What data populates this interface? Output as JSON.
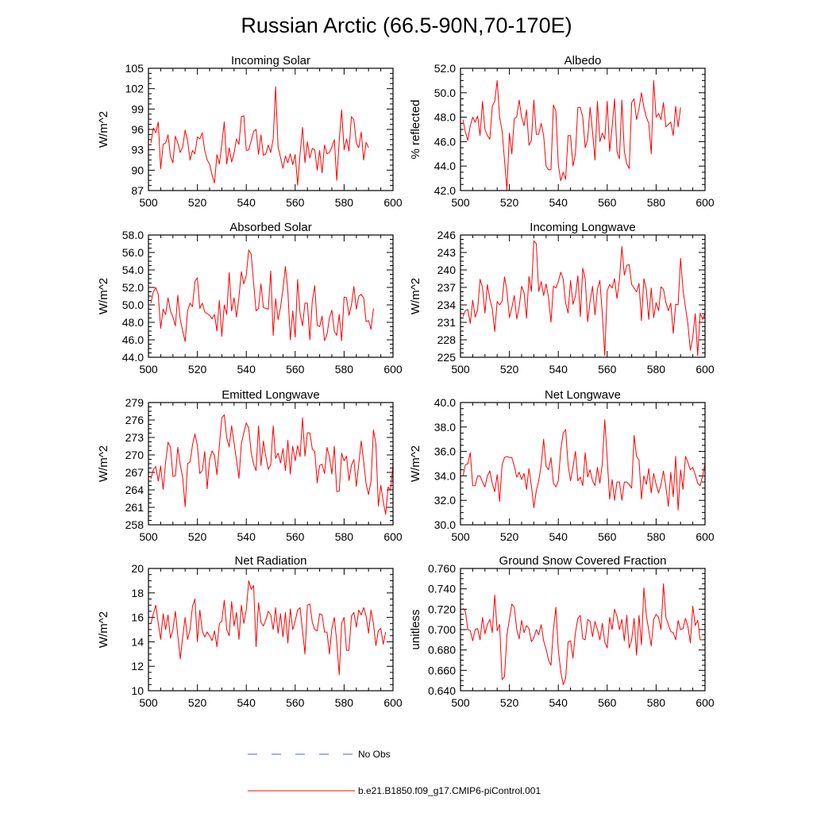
{
  "title": "Russian Arctic (66.5-90N,70-170E)",
  "legend": [
    {
      "label": "No Obs",
      "color": "#4a5fd6",
      "style": "dashed"
    },
    {
      "label": "b.e21.B1850.f09_g17.CMIP6-piControl.001",
      "color": "#ff0000",
      "style": "solid"
    }
  ],
  "chart_data": [
    {
      "type": "line",
      "title": "Incoming Solar",
      "ylabel": "W/m^2",
      "xlim": [
        500,
        600
      ],
      "ylim": [
        87,
        105
      ],
      "xticks": [
        "500",
        "520",
        "540",
        "560",
        "580",
        "600"
      ],
      "yticks": [
        "87",
        "90",
        "93",
        "96",
        "99",
        "102",
        "105"
      ],
      "series": [
        {
          "name": "b.e21.B1850.f09_g17.CMIP6-piControl.001",
          "x_start": 501,
          "values": [
            94.0,
            96.2,
            95.5,
            97.1,
            90.2,
            93.8,
            94.0,
            95.2,
            92.0,
            91.1,
            95.0,
            94.0,
            92.6,
            93.4,
            95.9,
            94.3,
            91.5,
            92.9,
            92.4,
            94.9,
            94.6,
            95.5,
            92.9,
            91.5,
            90.9,
            89.3,
            88.1,
            92.3,
            90.9,
            93.9,
            97.1,
            90.9,
            93.3,
            91.2,
            92.5,
            94.6,
            93.8,
            97.9,
            98.0,
            92.9,
            93.0,
            94.3,
            95.7,
            96.0,
            92.3,
            95.2,
            92.2,
            92.4,
            93.7,
            92.6,
            94.6,
            102.3,
            93.4,
            91.9,
            90.3,
            92.1,
            91.1,
            92.4,
            90.8,
            92.3,
            87.8,
            92.4,
            96.3,
            91.1,
            94.2,
            91.8,
            93.2,
            93.0,
            90.0,
            92.9,
            89.6,
            93.7,
            92.4,
            92.6,
            93.4,
            94.5,
            88.5,
            94.3,
            98.9,
            93.0,
            94.6,
            92.8,
            97.9,
            97.4,
            94.0,
            93.3,
            95.6,
            91.5,
            94.1,
            93.3
          ]
        }
      ]
    },
    {
      "type": "line",
      "title": "Albedo",
      "ylabel": "% reflected",
      "xlim": [
        500,
        600
      ],
      "ylim": [
        42.0,
        52.0
      ],
      "xticks": [
        "500",
        "520",
        "540",
        "560",
        "580",
        "600"
      ],
      "yticks": [
        "42.0",
        "44.0",
        "46.0",
        "48.0",
        "50.0",
        "52.0"
      ],
      "series": [
        {
          "name": "b.e21.B1850.f09_g17.CMIP6-piControl.001",
          "x_start": 501,
          "values": [
            47.8,
            46.8,
            46.1,
            47.3,
            48.0,
            47.6,
            48.1,
            46.5,
            49.3,
            47.0,
            46.5,
            46.2,
            48.9,
            49.3,
            51.0,
            48.0,
            46.9,
            44.5,
            42.0,
            46.7,
            45.0,
            47.9,
            48.0,
            49.4,
            48.0,
            47.3,
            48.6,
            45.7,
            46.1,
            49.4,
            46.6,
            46.6,
            47.5,
            46.5,
            44.0,
            43.7,
            43.7,
            49.0,
            48.5,
            44.1,
            42.8,
            43.5,
            42.9,
            46.5,
            46.5,
            44.0,
            45.0,
            48.8,
            48.8,
            48.0,
            45.5,
            46.2,
            48.8,
            46.8,
            44.5,
            49.3,
            46.0,
            46.7,
            46.2,
            49.3,
            45.2,
            47.2,
            49.5,
            45.2,
            44.6,
            49.4,
            45.2,
            44.2,
            43.8,
            49.2,
            49.5,
            47.8,
            48.7,
            50.0,
            48.8,
            48.0,
            47.5,
            45.0,
            51.0,
            48.0,
            48.3,
            47.8,
            49.2,
            47.2,
            47.4,
            47.6,
            46.5,
            48.9,
            47.2,
            48.8
          ]
        }
      ]
    },
    {
      "type": "line",
      "title": "Absorbed Solar",
      "ylabel": "W/m^2",
      "xlim": [
        500,
        600
      ],
      "ylim": [
        44.0,
        58.0
      ],
      "xticks": [
        "500",
        "520",
        "540",
        "560",
        "580",
        "600"
      ],
      "yticks": [
        "44.0",
        "46.0",
        "48.0",
        "50.0",
        "52.0",
        "54.0",
        "56.0",
        "58.0"
      ],
      "series": [
        {
          "name": "b.e21.B1850.f09_g17.CMIP6-piControl.001",
          "x_start": 501,
          "values": [
            50.2,
            51.5,
            52.0,
            51.2,
            47.3,
            49.5,
            48.9,
            50.8,
            49.3,
            48.6,
            47.6,
            51.1,
            48.3,
            47.0,
            45.8,
            49.3,
            50.2,
            49.8,
            52.7,
            53.1,
            49.6,
            50.2,
            49.2,
            49.0,
            48.8,
            48.4,
            48.9,
            47.0,
            50.5,
            46.4,
            50.0,
            48.9,
            53.7,
            49.3,
            50.8,
            48.6,
            50.9,
            53.8,
            52.4,
            53.4,
            56.3,
            55.8,
            52.5,
            49.3,
            49.6,
            52.4,
            49.7,
            49.6,
            49.5,
            53.9,
            46.5,
            50.7,
            48.3,
            49.7,
            51.8,
            54.4,
            51.6,
            46.0,
            49.3,
            46.3,
            52.9,
            49.0,
            47.6,
            50.2,
            50.2,
            46.0,
            50.5,
            52.2,
            47.7,
            47.5,
            48.7,
            45.9,
            46.6,
            48.5,
            49.4,
            47.0,
            46.5,
            48.9,
            45.9,
            50.9,
            50.8,
            48.8,
            50.0,
            52.1,
            49.5,
            51.0,
            51.2,
            50.8,
            48.1,
            48.2,
            47.2,
            49.6
          ]
        }
      ]
    },
    {
      "type": "line",
      "title": "Incoming Longwave",
      "ylabel": "W/m^2",
      "xlim": [
        500,
        600
      ],
      "ylim": [
        225,
        246
      ],
      "xticks": [
        "500",
        "520",
        "540",
        "560",
        "580",
        "600"
      ],
      "yticks": [
        "225",
        "228",
        "231",
        "234",
        "237",
        "240",
        "243",
        "246"
      ],
      "series": [
        {
          "name": "b.e21.B1850.f09_g17.CMIP6-piControl.001",
          "x_start": 501,
          "values": [
            232.0,
            233.0,
            233.2,
            230.8,
            234.8,
            231.9,
            233.1,
            238.4,
            237.0,
            232.6,
            237.5,
            235.0,
            233.3,
            229.4,
            234.6,
            234.0,
            234.6,
            238.8,
            236.4,
            231.8,
            233.5,
            235.6,
            231.6,
            233.6,
            237.2,
            236.1,
            231.7,
            238.9,
            236.3,
            245.0,
            244.5,
            236.3,
            238.0,
            235.6,
            237.6,
            235.3,
            231.0,
            237.2,
            236.9,
            238.0,
            239.6,
            238.4,
            234.3,
            232.6,
            238.2,
            234.1,
            235.5,
            239.0,
            232.0,
            240.3,
            238.5,
            231.1,
            234.6,
            237.2,
            232.3,
            236.7,
            238.2,
            232.4,
            225.3,
            236.4,
            237.5,
            236.9,
            238.5,
            235.1,
            238.3,
            244.0,
            239.1,
            240.8,
            240.9,
            237.5,
            236.9,
            236.2,
            237.7,
            231.3,
            238.5,
            236.6,
            231.5,
            236.9,
            231.8,
            234.4,
            233.0,
            237.1,
            236.7,
            234.4,
            233.0,
            234.3,
            229.1,
            234.1,
            234.0,
            242.0,
            236.6,
            233.6,
            230.7,
            226.2,
            228.4,
            232.5,
            225.3,
            232.6,
            231.5,
            232.6,
            234.7
          ]
        }
      ]
    },
    {
      "type": "line",
      "title": "Emitted Longwave",
      "ylabel": "W/m^2",
      "xlim": [
        500,
        600
      ],
      "ylim": [
        258,
        279
      ],
      "xticks": [
        "500",
        "520",
        "540",
        "560",
        "580",
        "600"
      ],
      "yticks": [
        "258",
        "261",
        "264",
        "267",
        "270",
        "273",
        "276",
        "279"
      ],
      "series": [
        {
          "name": "b.e21.B1850.f09_g17.CMIP6-piControl.001",
          "x_start": 501,
          "values": [
            265.9,
            267.5,
            268.0,
            265.5,
            268.1,
            264.1,
            268.7,
            272.2,
            271.3,
            266.3,
            266.4,
            271.3,
            268.3,
            266.1,
            261.1,
            268.5,
            268.8,
            271.7,
            273.6,
            271.6,
            266.8,
            267.3,
            270.6,
            264.2,
            269.2,
            270.7,
            269.9,
            266.6,
            271.7,
            276.4,
            276.9,
            272.9,
            271.4,
            275.0,
            272.1,
            269.1,
            266.0,
            272.0,
            273.8,
            275.5,
            274.6,
            270.4,
            268.4,
            267.3,
            275.0,
            268.2,
            272.4,
            269.7,
            267.5,
            268.4,
            275.0,
            269.4,
            270.3,
            268.6,
            271.1,
            267.3,
            272.5,
            266.7,
            271.5,
            269.0,
            271.6,
            269.7,
            276.4,
            269.8,
            273.8,
            273.8,
            271.0,
            270.6,
            265.2,
            268.2,
            268.4,
            266.8,
            271.3,
            269.7,
            266.7,
            271.5,
            263.7,
            263.8,
            270.3,
            269.0,
            269.8,
            265.6,
            268.2,
            269.2,
            264.6,
            268.5,
            272.4,
            268.9,
            265.0,
            263.2,
            265.5,
            274.3,
            271.9,
            261.2,
            264.8,
            262.0,
            259.8,
            264.5,
            263.9,
            268.5
          ]
        }
      ]
    },
    {
      "type": "line",
      "title": "Net Longwave",
      "ylabel": "W/m^2",
      "xlim": [
        500,
        600
      ],
      "ylim": [
        30.0,
        40.0
      ],
      "xticks": [
        "500",
        "520",
        "540",
        "560",
        "580",
        "600"
      ],
      "yticks": [
        "30.0",
        "32.0",
        "34.0",
        "36.0",
        "38.0",
        "40.0"
      ],
      "series": [
        {
          "name": "b.e21.B1850.f09_g17.CMIP6-piControl.001",
          "x_start": 501,
          "values": [
            34.0,
            34.9,
            35.0,
            35.9,
            33.2,
            33.2,
            34.0,
            34.0,
            33.5,
            33.1,
            34.0,
            34.4,
            33.4,
            32.7,
            34.1,
            31.9,
            34.9,
            35.5,
            35.6,
            35.5,
            35.5,
            34.8,
            33.9,
            34.3,
            33.7,
            34.2,
            32.9,
            34.6,
            33.2,
            31.4,
            32.8,
            33.6,
            34.9,
            37.0,
            34.8,
            34.5,
            35.5,
            33.4,
            33.1,
            33.6,
            36.1,
            37.5,
            37.8,
            34.9,
            33.6,
            34.7,
            36.0,
            33.6,
            33.9,
            33.2,
            35.9,
            33.9,
            34.5,
            33.6,
            33.2,
            34.7,
            33.4,
            35.0,
            38.6,
            35.4,
            32.1,
            33.7,
            32.0,
            33.5,
            33.5,
            32.0,
            33.5,
            33.5,
            33.3,
            33.0,
            37.3,
            35.6,
            35.3,
            32.1,
            34.0,
            33.3,
            34.6,
            32.6,
            34.2,
            33.3,
            32.6,
            33.3,
            34.4,
            33.1,
            31.5,
            34.3,
            32.3,
            35.6,
            31.2,
            34.5,
            32.9,
            35.6,
            35.1,
            34.5,
            34.7,
            34.1,
            33.4,
            33.2,
            34.0,
            35.0
          ]
        }
      ]
    },
    {
      "type": "line",
      "title": "Net Radiation",
      "ylabel": "W/m^2",
      "xlim": [
        500,
        600
      ],
      "ylim": [
        10,
        20
      ],
      "xticks": [
        "500",
        "520",
        "540",
        "560",
        "580",
        "600"
      ],
      "yticks": [
        "10",
        "12",
        "14",
        "16",
        "18",
        "20"
      ],
      "series": [
        {
          "name": "b.e21.B1850.f09_g17.CMIP6-piControl.001",
          "x_start": 501,
          "values": [
            15.5,
            16.3,
            17.0,
            15.5,
            14.2,
            16.3,
            15.0,
            16.2,
            14.3,
            15.0,
            16.5,
            14.5,
            12.6,
            14.4,
            16.0,
            14.2,
            15.0,
            16.9,
            17.5,
            14.0,
            16.6,
            14.9,
            14.4,
            14.8,
            14.5,
            14.1,
            14.9,
            13.6,
            15.5,
            15.7,
            17.4,
            15.0,
            14.5,
            17.3,
            15.3,
            16.4,
            14.2,
            17.0,
            15.5,
            16.6,
            19.0,
            18.3,
            18.6,
            13.6,
            17.2,
            15.6,
            15.3,
            15.8,
            16.5,
            16.2,
            15.0,
            16.8,
            14.7,
            16.3,
            14.4,
            16.4,
            13.9,
            16.7,
            15.0,
            15.7,
            16.6,
            16.8,
            14.9,
            13.0,
            17.0,
            17.1,
            15.6,
            15.0,
            14.9,
            16.3,
            16.2,
            14.8,
            14.8,
            13.0,
            15.1,
            16.0,
            14.0,
            11.3,
            15.5,
            16.0,
            13.3,
            13.3,
            16.1,
            16.4,
            15.2,
            16.6,
            16.2,
            16.8,
            16.1,
            14.7,
            16.6,
            15.5,
            13.7,
            14.9,
            15.1,
            13.8,
            14.8
          ]
        }
      ]
    },
    {
      "type": "line",
      "title": "Ground Snow Covered Fraction",
      "ylabel": "unitless",
      "xlim": [
        500,
        600
      ],
      "ylim": [
        0.64,
        0.76
      ],
      "xticks": [
        "500",
        "520",
        "540",
        "560",
        "580",
        "600"
      ],
      "yticks": [
        "0.640",
        "0.660",
        "0.680",
        "0.700",
        "0.720",
        "0.740",
        "0.760"
      ],
      "series": [
        {
          "name": "b.e21.B1850.f09_g17.CMIP6-piControl.001",
          "x_start": 501,
          "values": [
            0.721,
            0.718,
            0.7,
            0.699,
            0.689,
            0.7,
            0.701,
            0.69,
            0.712,
            0.696,
            0.705,
            0.71,
            0.697,
            0.734,
            0.699,
            0.705,
            0.651,
            0.654,
            0.695,
            0.71,
            0.725,
            0.722,
            0.7,
            0.691,
            0.709,
            0.697,
            0.704,
            0.701,
            0.688,
            0.692,
            0.7,
            0.695,
            0.705,
            0.689,
            0.681,
            0.67,
            0.665,
            0.7,
            0.722,
            0.68,
            0.659,
            0.646,
            0.652,
            0.688,
            0.689,
            0.672,
            0.697,
            0.711,
            0.714,
            0.691,
            0.69,
            0.71,
            0.708,
            0.693,
            0.708,
            0.7,
            0.69,
            0.706,
            0.688,
            0.682,
            0.712,
            0.7,
            0.72,
            0.713,
            0.7,
            0.71,
            0.689,
            0.714,
            0.682,
            0.69,
            0.711,
            0.675,
            0.714,
            0.685,
            0.741,
            0.714,
            0.699,
            0.684,
            0.71,
            0.715,
            0.712,
            0.7,
            0.745,
            0.712,
            0.705,
            0.698,
            0.697,
            0.69,
            0.709,
            0.7,
            0.701,
            0.711,
            0.703,
            0.687,
            0.723,
            0.704,
            0.709,
            0.69,
            0.69
          ]
        }
      ]
    }
  ]
}
